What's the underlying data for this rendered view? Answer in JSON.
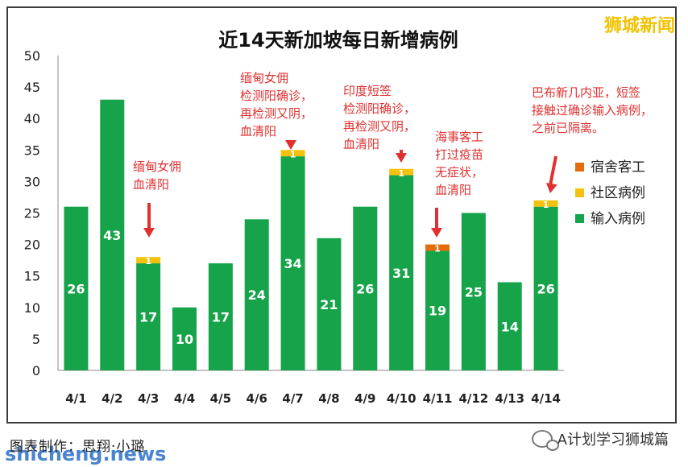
{
  "brand": "狮城新闻",
  "credit": "图表制作：思翔·小璐",
  "watermark": "shicheng.news",
  "wechat": {
    "account": "A计划学习狮城篇",
    "icon": "wechat-icon"
  },
  "colors": {
    "dormitory": "#e46c0a",
    "community": "#f4c20d",
    "imported": "#16a34a",
    "annotation": "#e03030",
    "bar_label": "#ffffff"
  },
  "chart_data": {
    "type": "bar",
    "stacked": true,
    "title": "近14天新加坡每日新增病例",
    "xlabel": "",
    "ylabel": "",
    "ylim": [
      0,
      50
    ],
    "yticks": [
      0,
      5,
      10,
      15,
      20,
      25,
      30,
      35,
      40,
      45,
      50
    ],
    "grid": false,
    "legend_position": "right",
    "categories": [
      "4/1",
      "4/2",
      "4/3",
      "4/4",
      "4/5",
      "4/6",
      "4/7",
      "4/8",
      "4/9",
      "4/10",
      "4/11",
      "4/12",
      "4/13",
      "4/14"
    ],
    "series": [
      {
        "name": "输入病例",
        "key": "imported",
        "values": [
          26,
          43,
          17,
          10,
          17,
          24,
          34,
          21,
          26,
          31,
          19,
          25,
          14,
          26
        ]
      },
      {
        "name": "社区病例",
        "key": "community",
        "values": [
          0,
          0,
          1,
          0,
          0,
          0,
          1,
          0,
          0,
          1,
          0,
          0,
          0,
          1
        ]
      },
      {
        "name": "宿舍客工",
        "key": "dormitory",
        "values": [
          0,
          0,
          0,
          0,
          0,
          0,
          0,
          0,
          0,
          0,
          1,
          0,
          0,
          0
        ]
      }
    ],
    "legend_order": [
      "宿舍客工",
      "社区病例",
      "输入病例"
    ],
    "annotations": [
      {
        "category": "4/3",
        "lines": [
          "缅甸女佣",
          "血清阳"
        ]
      },
      {
        "category": "4/7",
        "lines": [
          "缅甸女佣",
          "检测阳确诊，",
          "再检测又阴，",
          "血清阳"
        ]
      },
      {
        "category": "4/10",
        "lines": [
          "印度短签",
          "检测阳确诊，",
          "再检测又阴，",
          "血清阳"
        ]
      },
      {
        "category": "4/11",
        "lines": [
          "海事客工",
          "打过疫苗",
          "无症状，",
          "血清阳"
        ]
      },
      {
        "category": "4/14",
        "lines": [
          "巴布新几内亚，短签",
          "接触过确诊输入病例，",
          "之前已隔离。"
        ]
      }
    ]
  }
}
